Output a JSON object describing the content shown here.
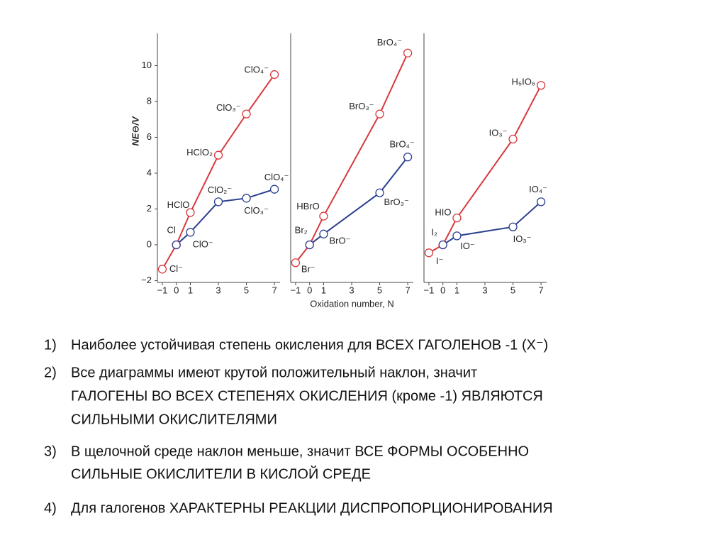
{
  "chart_data": [
    {
      "type": "line",
      "ylabel": "NE⊖/V",
      "xlim": [
        -1.35,
        7.4
      ],
      "xticks": [
        {
          "value": -1,
          "label": "−1"
        },
        0,
        1,
        3,
        5,
        7
      ],
      "ylim": [
        -2.1,
        11.8
      ],
      "yticks": [
        {
          "value": -2,
          "label": "−2"
        },
        0,
        2,
        4,
        6,
        8,
        10
      ],
      "series": [
        {
          "color": "#d8383c",
          "x": [
            -1,
            0,
            1,
            3,
            5,
            7
          ],
          "values": [
            -1.36,
            0,
            1.8,
            5.0,
            7.3,
            9.5
          ],
          "labels": [
            "Cl⁻",
            "Cl",
            "HClO",
            "HClO₂",
            "ClO₃⁻",
            "ClO₄⁻"
          ]
        },
        {
          "color": "#2b3f8f",
          "x": [
            0,
            1,
            3,
            5,
            7
          ],
          "values": [
            0,
            0.7,
            2.4,
            2.6,
            3.1
          ],
          "labels": [
            null,
            "ClO⁻",
            "ClO₂⁻",
            "ClO₃⁻",
            "ClO₄⁻"
          ]
        }
      ]
    },
    {
      "type": "line",
      "xlabel": "Oxidation number, N",
      "xlim": [
        -1.35,
        7.4
      ],
      "xticks": [
        {
          "value": -1,
          "label": "−1"
        },
        0,
        1,
        3,
        5,
        7
      ],
      "ylim": [
        -2.1,
        11.8
      ],
      "series": [
        {
          "color": "#d8383c",
          "x": [
            -1,
            0,
            1,
            5,
            7
          ],
          "values": [
            -1.0,
            0,
            1.6,
            7.3,
            10.7
          ],
          "labels": [
            "Br⁻",
            "Br₂",
            "HBrO",
            "BrO₃⁻",
            "BrO₄⁻"
          ]
        },
        {
          "color": "#2b3f8f",
          "x": [
            0,
            1,
            5,
            7
          ],
          "values": [
            0,
            0.6,
            2.9,
            4.9
          ],
          "labels": [
            null,
            "BrO⁻",
            "BrO₃⁻",
            "BrO₄⁻"
          ]
        }
      ]
    },
    {
      "type": "line",
      "xlim": [
        -1.35,
        7.4
      ],
      "xticks": [
        {
          "value": -1,
          "label": "−1"
        },
        0,
        1,
        3,
        5,
        7
      ],
      "ylim": [
        -2.1,
        11.8
      ],
      "series": [
        {
          "color": "#d8383c",
          "x": [
            -1,
            0,
            1,
            5,
            7
          ],
          "values": [
            -0.45,
            0,
            1.5,
            5.9,
            8.9
          ],
          "labels": [
            "I⁻",
            "I₂",
            "HIO",
            "IO₃⁻",
            "H₅IO₆"
          ]
        },
        {
          "color": "#2b3f8f",
          "x": [
            0,
            1,
            5,
            7
          ],
          "values": [
            0,
            0.5,
            1.0,
            2.4
          ],
          "labels": [
            null,
            "IO⁻",
            "IO₃⁻",
            "IO₄⁻"
          ]
        }
      ]
    }
  ],
  "list": [
    {
      "number": "1)",
      "lines": [
        "Наиболее устойчивая степень окисления для ВСЕХ ГАГОЛЕНОВ -1 (X⁻)"
      ]
    },
    {
      "number": "2)",
      "lines": [
        "Все диаграммы имеют крутой положительный наклон, значит",
        "ГАЛОГЕНЫ ВО ВСЕХ СТЕПЕНЯХ ОКИСЛЕНИЯ (кроме -1) ЯВЛЯЮТСЯ",
        "СИЛЬНЫМИ ОКИСЛИТЕЛЯМИ"
      ]
    },
    {
      "number": "3)",
      "lines": [
        "В щелочной среде наклон меньше, значит ВСЕ ФОРМЫ ОСОБЕННО",
        "СИЛЬНЫЕ ОКИСЛИТЕЛИ В КИСЛОЙ СРЕДЕ"
      ]
    },
    {
      "number": "4)",
      "lines": [
        "Для галогенов ХАРАКТЕРНЫ РЕАКЦИИ ДИСПРОПОРЦИОНИРОВАНИЯ"
      ]
    }
  ]
}
